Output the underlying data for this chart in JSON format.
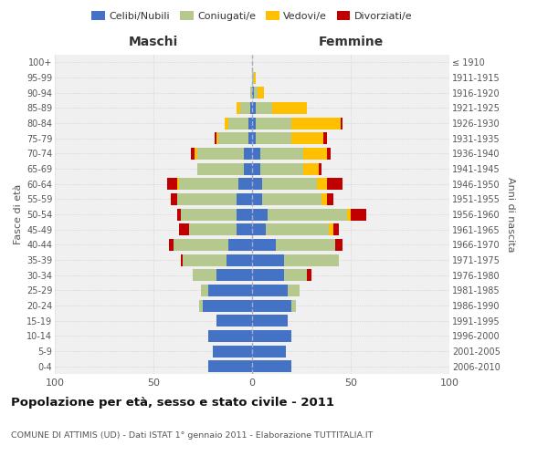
{
  "age_groups": [
    "0-4",
    "5-9",
    "10-14",
    "15-19",
    "20-24",
    "25-29",
    "30-34",
    "35-39",
    "40-44",
    "45-49",
    "50-54",
    "55-59",
    "60-64",
    "65-69",
    "70-74",
    "75-79",
    "80-84",
    "85-89",
    "90-94",
    "95-99",
    "100+"
  ],
  "birth_years": [
    "2006-2010",
    "2001-2005",
    "1996-2000",
    "1991-1995",
    "1986-1990",
    "1981-1985",
    "1976-1980",
    "1971-1975",
    "1966-1970",
    "1961-1965",
    "1956-1960",
    "1951-1955",
    "1946-1950",
    "1941-1945",
    "1936-1940",
    "1931-1935",
    "1926-1930",
    "1921-1925",
    "1916-1920",
    "1911-1915",
    "≤ 1910"
  ],
  "maschi": {
    "celibe": [
      22,
      20,
      22,
      18,
      25,
      22,
      18,
      13,
      12,
      8,
      8,
      8,
      7,
      4,
      4,
      2,
      2,
      1,
      0,
      0,
      0
    ],
    "coniugato": [
      0,
      0,
      0,
      0,
      2,
      4,
      12,
      22,
      28,
      24,
      28,
      30,
      30,
      24,
      24,
      15,
      10,
      5,
      1,
      0,
      0
    ],
    "vedovo": [
      0,
      0,
      0,
      0,
      0,
      0,
      0,
      0,
      0,
      0,
      0,
      0,
      1,
      0,
      1,
      1,
      2,
      2,
      0,
      0,
      0
    ],
    "divorziato": [
      0,
      0,
      0,
      0,
      0,
      0,
      0,
      1,
      2,
      5,
      2,
      3,
      5,
      0,
      2,
      1,
      0,
      0,
      0,
      0,
      0
    ]
  },
  "femmine": {
    "nubile": [
      20,
      17,
      20,
      18,
      20,
      18,
      16,
      16,
      12,
      7,
      8,
      5,
      5,
      4,
      4,
      2,
      2,
      2,
      1,
      0,
      0
    ],
    "coniugata": [
      0,
      0,
      0,
      0,
      2,
      6,
      12,
      28,
      30,
      32,
      40,
      30,
      28,
      22,
      22,
      18,
      18,
      8,
      2,
      1,
      0
    ],
    "vedova": [
      0,
      0,
      0,
      0,
      0,
      0,
      0,
      0,
      0,
      2,
      2,
      3,
      5,
      8,
      12,
      16,
      25,
      18,
      3,
      1,
      0
    ],
    "divorziata": [
      0,
      0,
      0,
      0,
      0,
      0,
      2,
      0,
      4,
      3,
      8,
      3,
      8,
      1,
      2,
      2,
      1,
      0,
      0,
      0,
      0
    ]
  },
  "colors": {
    "celibe": "#4472C4",
    "coniugato": "#b5c98e",
    "vedovo": "#ffc000",
    "divorziato": "#c00000"
  },
  "title": "Popolazione per età, sesso e stato civile - 2011",
  "subtitle": "COMUNE DI ATTIMIS (UD) - Dati ISTAT 1° gennaio 2011 - Elaborazione TUTTITALIA.IT",
  "xlabel_left": "Maschi",
  "xlabel_right": "Femmine",
  "ylabel_left": "Fasce di età",
  "ylabel_right": "Anni di nascita",
  "xlim": 100,
  "legend_labels": [
    "Celibi/Nubili",
    "Coniugati/e",
    "Vedovi/e",
    "Divorziati/e"
  ],
  "background_color": "#ffffff",
  "plot_bg": "#f0f0f0"
}
